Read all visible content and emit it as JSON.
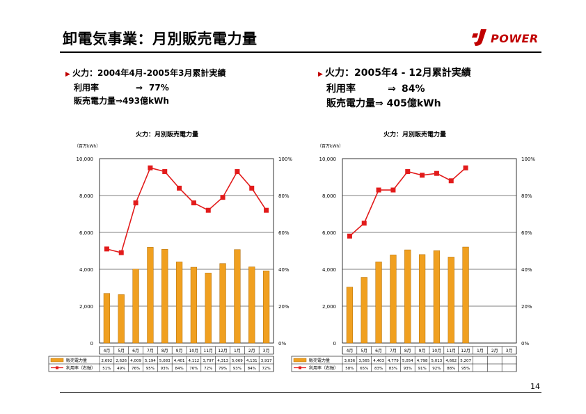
{
  "header": {
    "title": "卸電気事業：月別販売電力量",
    "logo_text": "POWER",
    "colors": {
      "logo": "#c00000",
      "bars": "#f0a020",
      "bar_edge": "#b06a00",
      "line": "#e21b1b"
    }
  },
  "left_summary": {
    "line1": "火力：2004年4月-2005年3月累計実績",
    "util_label": "利用率",
    "util_arrow": "⇒",
    "util_value": "77%",
    "sales_label": "販売電力量⇒493億kWh"
  },
  "right_summary": {
    "line1": "火力：2005年4 - 12月累計実績",
    "util_label": "利用率",
    "util_arrow": "⇒",
    "util_value": "84%",
    "sales_label": "販売電力量⇒",
    "sales_value": "405億kWh"
  },
  "chart_data": [
    {
      "type": "bar+line",
      "title": "火力：月別販売電力量",
      "unit_label": "（百万kWh）",
      "categories": [
        "4月",
        "5月",
        "6月",
        "7月",
        "8月",
        "9月",
        "10月",
        "11月",
        "12月",
        "1月",
        "2月",
        "3月"
      ],
      "y_ticks": [
        "0",
        "2,000",
        "4,000",
        "6,000",
        "8,000",
        "10,000"
      ],
      "y2_ticks": [
        "0%",
        "20%",
        "40%",
        "60%",
        "80%",
        "100%"
      ],
      "ylim": [
        0,
        10000
      ],
      "y2lim": [
        0,
        100
      ],
      "grid": true,
      "series": [
        {
          "name": "販売電力量",
          "kind": "bar",
          "values": [
            2692,
            2626,
            4009,
            5194,
            5083,
            4401,
            4112,
            3797,
            4313,
            5069,
            4131,
            3917
          ],
          "labels": [
            "2,692",
            "2,626",
            "4,009",
            "5,194",
            "5,083",
            "4,401",
            "4,112",
            "3,797",
            "4,313",
            "5,069",
            "4,131",
            "3,917"
          ]
        },
        {
          "name": "利用率（右軸）",
          "kind": "line",
          "values": [
            51,
            49,
            76,
            95,
            93,
            84,
            76,
            72,
            79,
            93,
            84,
            72
          ],
          "labels": [
            "51%",
            "49%",
            "76%",
            "95%",
            "93%",
            "84%",
            "76%",
            "72%",
            "79%",
            "93%",
            "84%",
            "72%"
          ]
        }
      ]
    },
    {
      "type": "bar+line",
      "title": "火力：月別販売電力量",
      "unit_label": "（百万kWh）",
      "categories": [
        "4月",
        "5月",
        "6月",
        "7月",
        "8月",
        "9月",
        "10月",
        "11月",
        "12月",
        "1月",
        "2月",
        "3月"
      ],
      "y_ticks": [
        "0",
        "2,000",
        "4,000",
        "6,000",
        "8,000",
        "10,000"
      ],
      "y2_ticks": [
        "0%",
        "20%",
        "40%",
        "60%",
        "80%",
        "100%"
      ],
      "ylim": [
        0,
        10000
      ],
      "y2lim": [
        0,
        100
      ],
      "grid": true,
      "series": [
        {
          "name": "販売電力量",
          "kind": "bar",
          "values": [
            3036,
            3565,
            4403,
            4779,
            5054,
            4798,
            5013,
            4662,
            5207,
            null,
            null,
            null
          ],
          "labels": [
            "3,036",
            "3,565",
            "4,403",
            "4,779",
            "5,054",
            "4,798",
            "5,013",
            "4,662",
            "5,207",
            "",
            "",
            ""
          ]
        },
        {
          "name": "利用率（右軸）",
          "kind": "line",
          "values": [
            58,
            65,
            83,
            83,
            93,
            91,
            92,
            88,
            95,
            null,
            null,
            null
          ],
          "labels": [
            "58%",
            "65%",
            "83%",
            "83%",
            "93%",
            "91%",
            "92%",
            "88%",
            "95%",
            "",
            "",
            ""
          ]
        }
      ]
    }
  ],
  "footer": {
    "page_number": "14"
  }
}
